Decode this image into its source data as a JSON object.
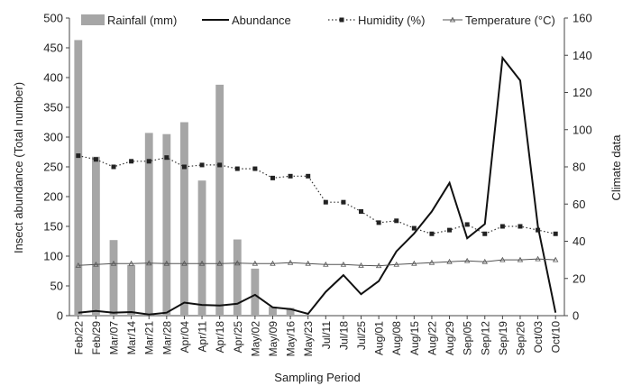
{
  "chart_data": {
    "type": "bar",
    "title": "",
    "xlabel": "Sampling Period",
    "ylabel": "Insect abundance (Total number)",
    "y2label": "Climate data",
    "ylim": [
      0,
      500
    ],
    "y2lim": [
      0,
      160
    ],
    "yticks": [
      0,
      50,
      100,
      150,
      200,
      250,
      300,
      350,
      400,
      450,
      500
    ],
    "y2ticks": [
      0,
      20,
      40,
      60,
      80,
      100,
      120,
      140,
      160
    ],
    "legend_position": "top",
    "categories": [
      "Feb/22",
      "Feb/29",
      "Mar/07",
      "Mar/14",
      "Mar/21",
      "Mar/28",
      "Apr/04",
      "Apr/11",
      "Apr/18",
      "Apr/25",
      "May/02",
      "May/09",
      "May/16",
      "May/23",
      "Jul/11",
      "Jul/18",
      "Jul/25",
      "Aug/01",
      "Aug/08",
      "Aug/15",
      "Aug/22",
      "Aug/29",
      "Sep/05",
      "Sep/12",
      "Sep/19",
      "Sep/26",
      "Oct/03",
      "Oct/10"
    ],
    "series": [
      {
        "name": "Rainfall (mm)",
        "kind": "bar",
        "axis": "left",
        "color": "#a6a6a6",
        "values": [
          463,
          267,
          127,
          85,
          307,
          305,
          325,
          227,
          388,
          128,
          79,
          15,
          13,
          0,
          0,
          0,
          0,
          0,
          0,
          0,
          0,
          0,
          0,
          0,
          0,
          0,
          0,
          0
        ]
      },
      {
        "name": "Abundance",
        "kind": "line",
        "axis": "left",
        "color": "#111111",
        "values": [
          5,
          8,
          5,
          6,
          2,
          5,
          22,
          18,
          17,
          20,
          35,
          14,
          11,
          3,
          40,
          68,
          36,
          58,
          108,
          138,
          175,
          223,
          130,
          154,
          433,
          395,
          150,
          5
        ]
      },
      {
        "name": "Humidity  (%)",
        "kind": "line-dotted-marker",
        "axis": "right",
        "color": "#333333",
        "values": [
          86,
          84,
          80,
          83,
          83,
          85,
          80,
          81,
          81,
          79,
          79,
          74,
          75,
          75,
          61,
          61,
          56,
          50,
          51,
          47,
          44,
          46,
          49,
          44,
          48,
          48,
          46,
          44
        ]
      },
      {
        "name": "Temperature  (°C)",
        "kind": "line-marker",
        "axis": "right",
        "color": "#555555",
        "values": [
          27,
          27.5,
          28,
          28,
          28.2,
          28,
          28,
          28,
          28,
          28.2,
          28,
          28,
          28.5,
          28,
          27.5,
          27.5,
          27,
          26.8,
          27.5,
          28,
          28.5,
          29,
          29.5,
          29,
          30,
          30,
          30.5,
          30
        ]
      }
    ]
  }
}
